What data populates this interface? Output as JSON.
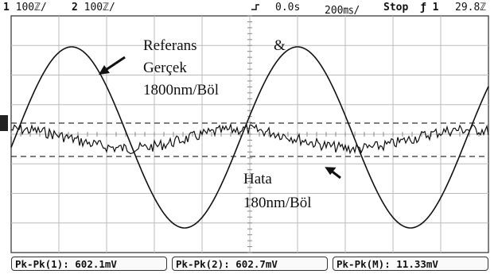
{
  "status": {
    "ch1_label": "1",
    "ch1_scale": "100ℤ/",
    "ch2_label": "2",
    "ch2_scale": "100ℤ/",
    "time_offset": "0.0s",
    "time_scale": "200㎳/",
    "run_state": "Stop",
    "trigger_channel": "1",
    "trigger_level": "29.8ℤ"
  },
  "annotations": {
    "ref_line1": "Referans",
    "ampersand": "&",
    "ref_line2": "Gerçek",
    "ref_line3": "1800nm/Böl",
    "error_line1": "Hata",
    "error_line2": "180nm/Böl"
  },
  "measurements": [
    {
      "label": "Pk-Pk(1):",
      "value": "602.1mV"
    },
    {
      "label": "Pk-Pk(2):",
      "value": "602.7mV"
    },
    {
      "label": "Pk-Pk(M):",
      "value": "11.33mV"
    }
  ],
  "colors": {
    "trace": "#111111",
    "grid": "#bbbbbb",
    "cursor_dashed": "#333333"
  }
}
